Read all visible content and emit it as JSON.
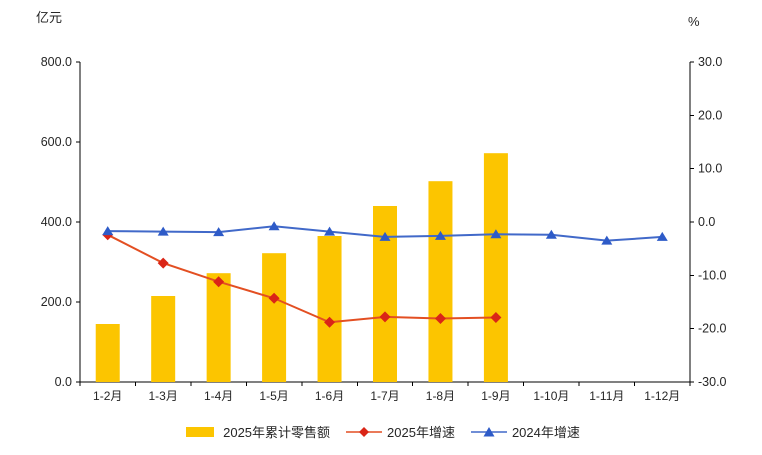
{
  "chart_data": {
    "type": "combo-bar-line",
    "background": "#ffffff",
    "grid": false,
    "legend_position": "bottom",
    "categories": [
      "1-2月",
      "1-3月",
      "1-4月",
      "1-5月",
      "1-6月",
      "1-7月",
      "1-8月",
      "1-9月",
      "1-10月",
      "1-11月",
      "1-12月"
    ],
    "left_axis": {
      "title": "亿元",
      "min": 0,
      "max": 800,
      "step": 200,
      "decimals": 1
    },
    "right_axis": {
      "title": "%",
      "min": -30,
      "max": 30,
      "step": 10,
      "decimals": 1
    },
    "series": [
      {
        "name": "2025年累计零售额",
        "type": "bar",
        "axis": "left",
        "color": "#FCC500",
        "values": [
          145,
          215,
          272,
          322,
          365,
          440,
          502,
          572,
          null,
          null,
          null
        ]
      },
      {
        "name": "2025年增速",
        "type": "line",
        "axis": "right",
        "marker": "diamond",
        "color": "#E34F22",
        "marker_color": "#DA2517",
        "values": [
          -2.4,
          -7.7,
          -11.2,
          -14.3,
          -18.8,
          -17.8,
          -18.1,
          -17.9,
          null,
          null,
          null
        ]
      },
      {
        "name": "2024年增速",
        "type": "line",
        "axis": "right",
        "marker": "triangle",
        "color": "#4169C9",
        "marker_color": "#2E5BC8",
        "values": [
          -1.7,
          -1.8,
          -1.9,
          -0.8,
          -1.8,
          -2.8,
          -2.6,
          -2.3,
          -2.4,
          -3.5,
          -2.8
        ]
      }
    ]
  }
}
